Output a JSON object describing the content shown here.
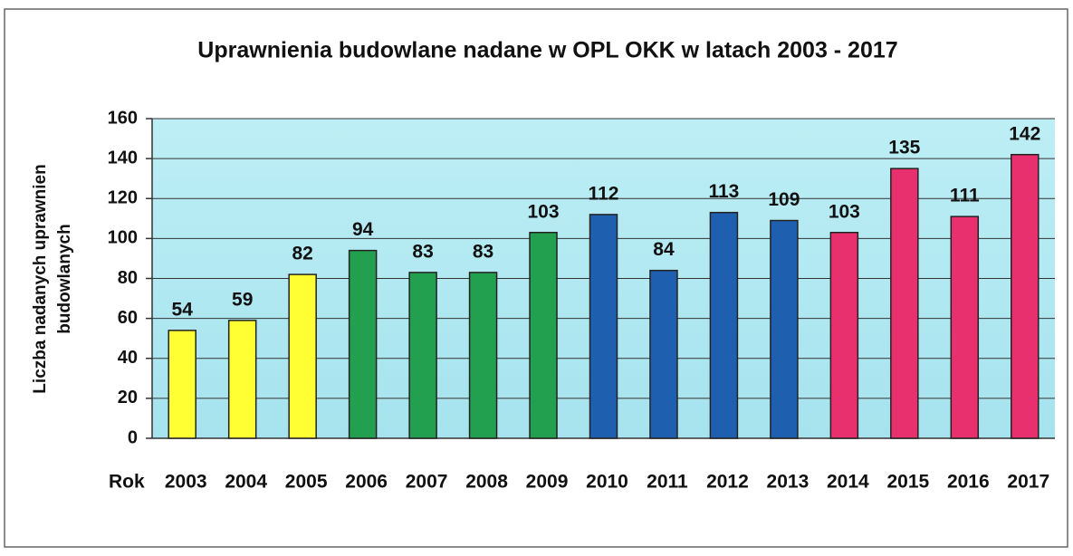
{
  "chart_data": {
    "type": "bar",
    "title": "Uprawnienia budowlane nadane w OPL OKK w latach 2003 - 2017",
    "ylabel": [
      "Liczba nadanych uprawnien",
      "budowlanych"
    ],
    "xlabel": "Rok",
    "categories": [
      "2003",
      "2004",
      "2005",
      "2006",
      "2007",
      "2008",
      "2009",
      "2010",
      "2011",
      "2012",
      "2013",
      "2014",
      "2015",
      "2016",
      "2017"
    ],
    "values": [
      54,
      59,
      82,
      94,
      83,
      83,
      103,
      112,
      84,
      113,
      109,
      103,
      135,
      111,
      142
    ],
    "colors": [
      "#ffff33",
      "#ffff33",
      "#ffff33",
      "#22a050",
      "#22a050",
      "#22a050",
      "#22a050",
      "#1f5fb0",
      "#1f5fb0",
      "#1f5fb0",
      "#1f5fb0",
      "#e8306e",
      "#e8306e",
      "#e8306e",
      "#e8306e"
    ],
    "ylim": [
      0,
      160
    ],
    "yticks": [
      0,
      20,
      40,
      60,
      80,
      100,
      120,
      140,
      160
    ],
    "grid": true
  }
}
